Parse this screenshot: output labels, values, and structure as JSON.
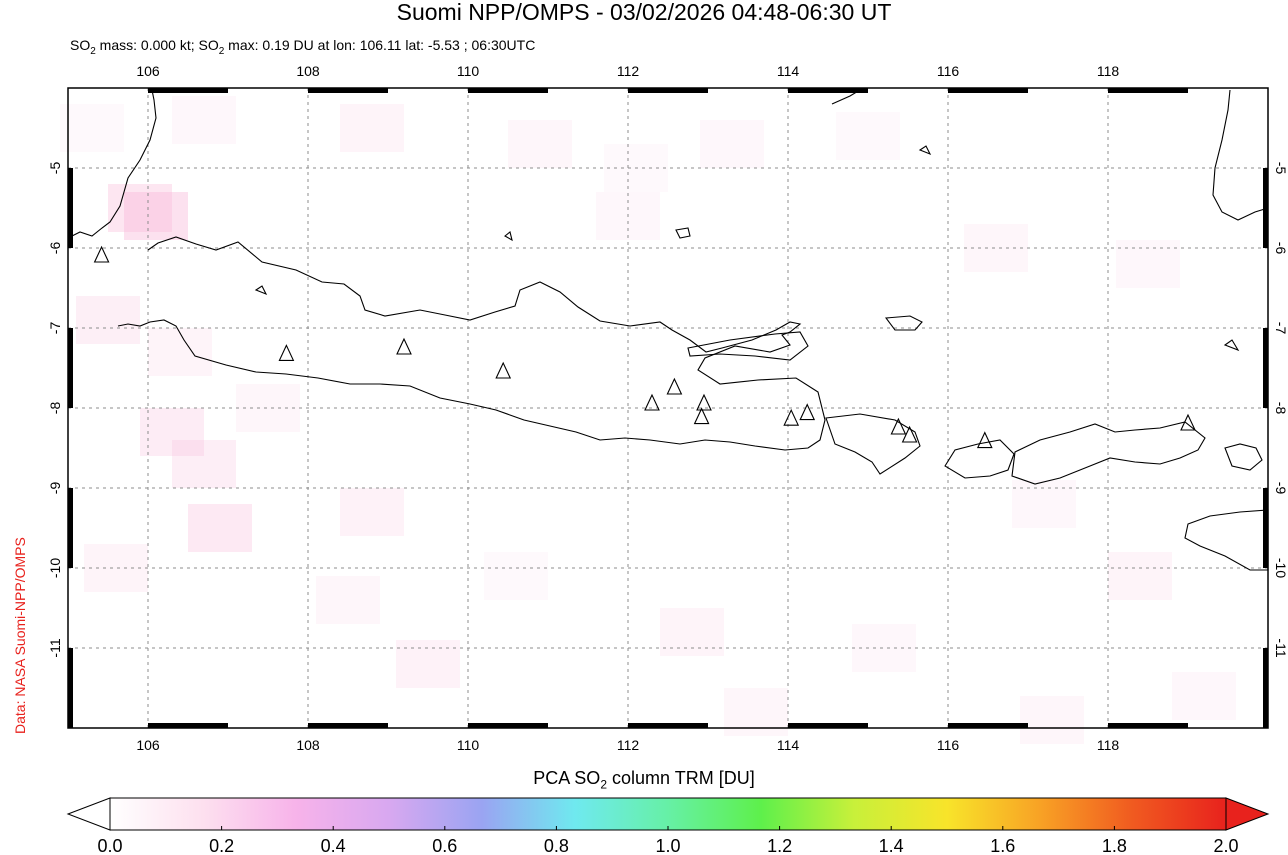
{
  "title": "Suomi NPP/OMPS - 03/02/2026 04:48-06:30 UT",
  "subtitle": {
    "part1": "SO",
    "sub1": "2",
    "part2": " mass: 0.000 kt; SO",
    "sub2": "2",
    "part3": " max: 0.19 DU at lon: 106.11 lat: -5.53 ; 06:30UTC"
  },
  "credit": "Data: NASA Suomi-NPP/OMPS",
  "map": {
    "lon_range": [
      105,
      120
    ],
    "lat_range": [
      -12,
      -4
    ],
    "lon_ticks": [
      "106",
      "108",
      "110",
      "112",
      "114",
      "116",
      "118"
    ],
    "lat_ticks": [
      "-5",
      "-6",
      "-7",
      "-8",
      "-9",
      "-10",
      "-11"
    ],
    "grid": "dotted",
    "colors": {
      "coast": "#000000",
      "grid": "#8c8c8c",
      "background": "#ffffff"
    },
    "volcanoes": [
      [
        105.42,
        -6.1
      ],
      [
        107.73,
        -7.33
      ],
      [
        109.2,
        -7.25
      ],
      [
        110.44,
        -7.55
      ],
      [
        112.3,
        -7.95
      ],
      [
        112.58,
        -7.75
      ],
      [
        112.95,
        -7.95
      ],
      [
        112.92,
        -8.12
      ],
      [
        114.04,
        -8.14
      ],
      [
        114.24,
        -8.07
      ],
      [
        115.38,
        -8.25
      ],
      [
        115.52,
        -8.35
      ],
      [
        116.46,
        -8.42
      ],
      [
        119.0,
        -8.2
      ]
    ],
    "so2_cells": [
      [
        105.3,
        -4.5,
        0.04
      ],
      [
        106.7,
        -4.4,
        0.05
      ],
      [
        108.8,
        -4.5,
        0.07
      ],
      [
        110.9,
        -4.7,
        0.06
      ],
      [
        112.1,
        -5.0,
        0.04
      ],
      [
        105.9,
        -5.5,
        0.16
      ],
      [
        106.1,
        -5.6,
        0.19
      ],
      [
        105.5,
        -6.9,
        0.1
      ],
      [
        106.4,
        -7.3,
        0.07
      ],
      [
        106.3,
        -8.3,
        0.12
      ],
      [
        106.7,
        -8.7,
        0.11
      ],
      [
        107.5,
        -8.0,
        0.06
      ],
      [
        106.9,
        -9.5,
        0.14
      ],
      [
        108.8,
        -9.3,
        0.08
      ],
      [
        105.6,
        -10.0,
        0.07
      ],
      [
        108.5,
        -10.4,
        0.06
      ],
      [
        109.5,
        -11.2,
        0.08
      ],
      [
        112.0,
        -5.6,
        0.05
      ],
      [
        113.3,
        -4.7,
        0.05
      ],
      [
        115.0,
        -4.6,
        0.04
      ],
      [
        116.6,
        -6.0,
        0.06
      ],
      [
        118.5,
        -6.2,
        0.05
      ],
      [
        117.2,
        -9.2,
        0.05
      ],
      [
        118.4,
        -10.1,
        0.07
      ],
      [
        112.8,
        -10.8,
        0.07
      ],
      [
        113.6,
        -11.8,
        0.06
      ],
      [
        115.2,
        -11.0,
        0.05
      ],
      [
        117.3,
        -11.9,
        0.06
      ],
      [
        119.2,
        -11.6,
        0.05
      ],
      [
        110.6,
        -10.1,
        0.04
      ]
    ]
  },
  "colorbar": {
    "title_part1": "PCA SO",
    "title_sub": "2",
    "title_part2": " column TRM [DU]",
    "ticks": [
      "0.0",
      "0.2",
      "0.4",
      "0.6",
      "0.8",
      "1.0",
      "1.2",
      "1.4",
      "1.6",
      "1.8",
      "2.0"
    ],
    "colors": [
      "#ffffff",
      "#fde0ef",
      "#f7b3ea",
      "#d8a8f0",
      "#9aa4f2",
      "#6fe9ef",
      "#66f0a6",
      "#5ef04b",
      "#c8f03a",
      "#f8e42a",
      "#f8a225",
      "#f05a20",
      "#e8221d"
    ]
  }
}
